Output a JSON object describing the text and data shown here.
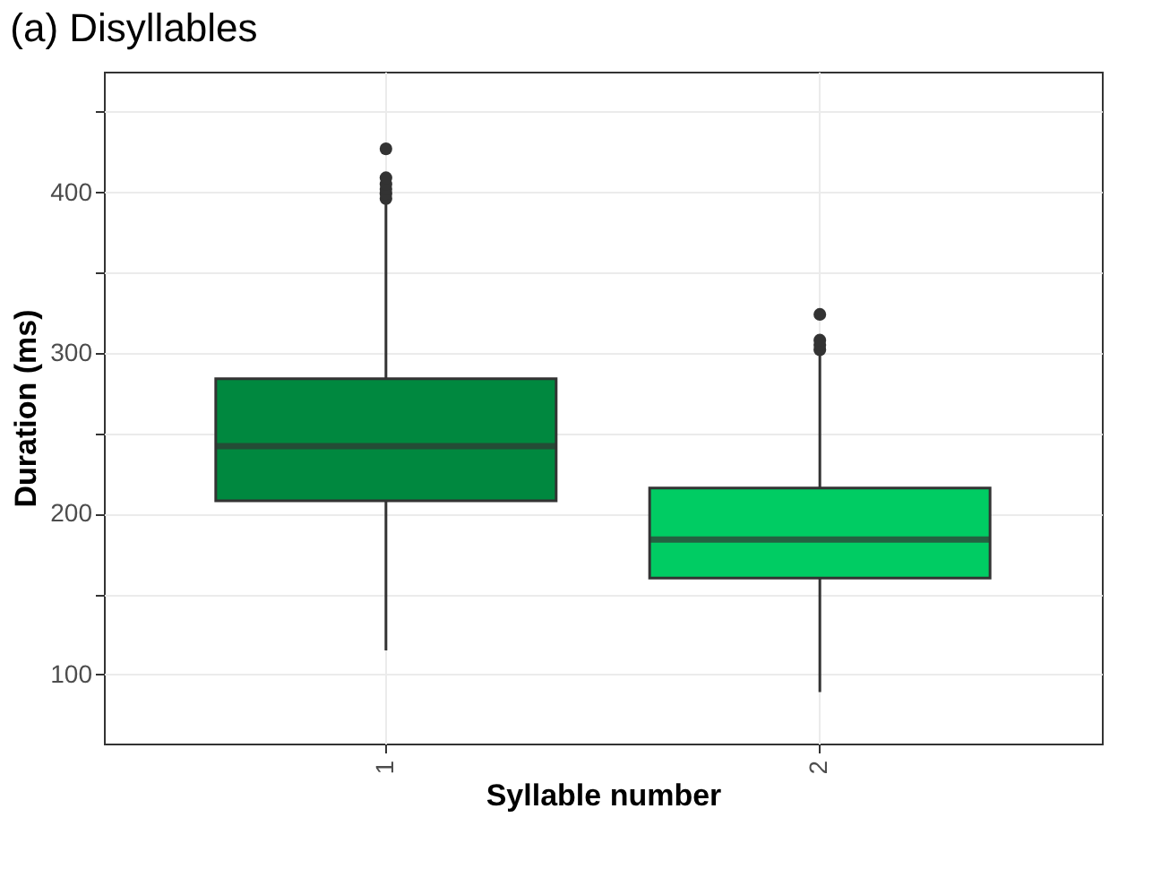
{
  "chart_data": {
    "type": "box",
    "title": "(a) Disyllables",
    "xlabel": "Syllable number",
    "ylabel": "Duration (ms)",
    "categories": [
      "1",
      "2"
    ],
    "boxes": [
      {
        "low": 115,
        "q1": 208,
        "median": 242,
        "q3": 284,
        "high": 394,
        "outliers": [
          396,
          399,
          402,
          405,
          409,
          427
        ]
      },
      {
        "low": 89,
        "q1": 160,
        "median": 184,
        "q3": 216,
        "high": 300,
        "outliers": [
          302,
          305,
          308,
          324
        ]
      }
    ],
    "colors": [
      "#00883f",
      "#00cc63"
    ],
    "ylim": [
      57,
      475
    ],
    "yticks": [
      100,
      {
        "value": 150,
        "label": null
      },
      200,
      {
        "value": 250,
        "label": null
      },
      300,
      {
        "value": 350,
        "label": null
      },
      400,
      {
        "value": 450,
        "label": null
      }
    ],
    "grid": true,
    "legend": false
  }
}
